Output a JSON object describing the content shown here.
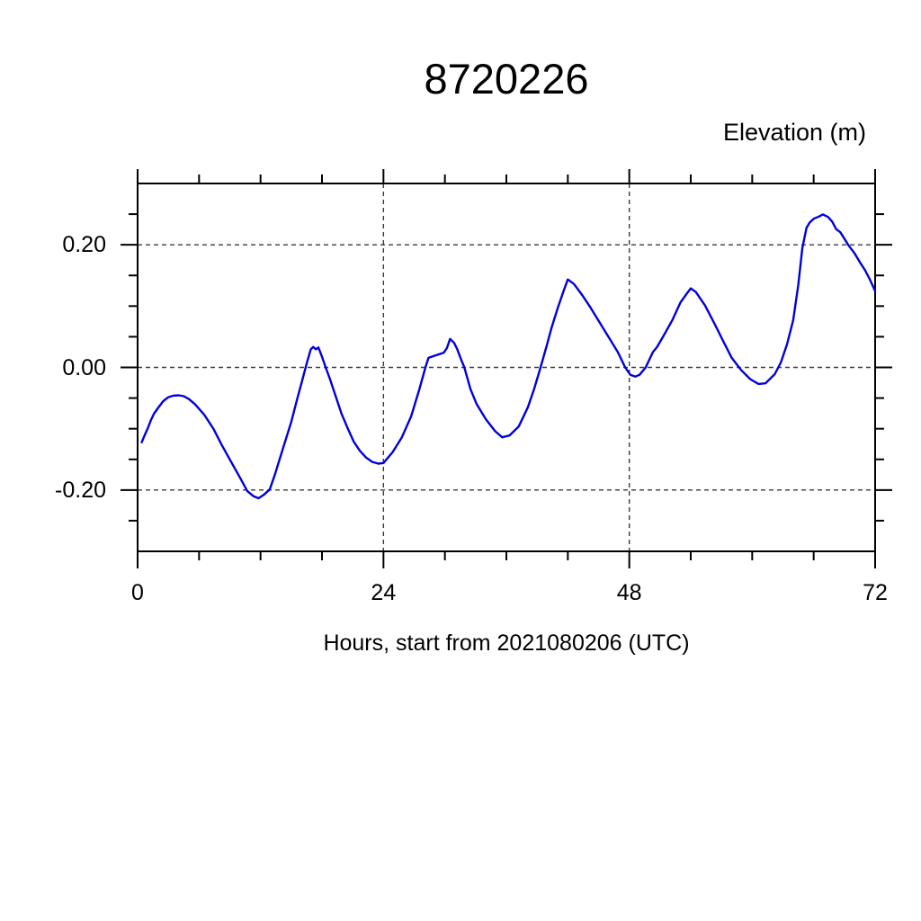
{
  "title": "8720226",
  "colors": {
    "line": "#0000dd",
    "frame": "#000000",
    "grid": "#3a3a3a",
    "background": "#ffffff",
    "text": "#000000"
  },
  "chart_data": {
    "type": "line",
    "title": "8720226",
    "xlabel": "Hours, start from 2021080206 (UTC)",
    "ylabel": "Elevation (m)",
    "ylabel_position": "top-right",
    "xlim": [
      0,
      72
    ],
    "ylim": [
      -0.3,
      0.3
    ],
    "x_ticks_major": [
      0,
      24,
      48,
      72
    ],
    "x_tick_labels": [
      "0",
      "24",
      "48",
      "72"
    ],
    "x_minor_interval": 6,
    "y_ticks_major": [
      0.2,
      0.0,
      -0.2
    ],
    "y_tick_labels": [
      "0.20",
      "0.00",
      "-0.20"
    ],
    "y_minor_interval": 0.05,
    "grid_x": [
      24,
      48
    ],
    "grid_y": [
      0.2,
      0.0,
      -0.2
    ],
    "grid_style": "dashed",
    "legend": "none",
    "series": [
      {
        "name": "elevation",
        "color": "#0000dd",
        "points": [
          [
            0.4,
            -0.122
          ],
          [
            0.7,
            -0.11
          ],
          [
            1.0,
            -0.099
          ],
          [
            1.3,
            -0.086
          ],
          [
            1.6,
            -0.0755
          ],
          [
            2.0,
            -0.066
          ],
          [
            2.5,
            -0.055
          ],
          [
            3.0,
            -0.0485
          ],
          [
            3.5,
            -0.046
          ],
          [
            4.0,
            -0.0455
          ],
          [
            4.5,
            -0.047
          ],
          [
            5.0,
            -0.0515
          ],
          [
            5.6,
            -0.06
          ],
          [
            6.5,
            -0.077
          ],
          [
            7.4,
            -0.1
          ],
          [
            8.2,
            -0.126
          ],
          [
            9.1,
            -0.153
          ],
          [
            10.0,
            -0.18
          ],
          [
            10.7,
            -0.2015
          ],
          [
            11.3,
            -0.21
          ],
          [
            11.8,
            -0.2135
          ],
          [
            12.3,
            -0.208
          ],
          [
            12.9,
            -0.199
          ],
          [
            13.4,
            -0.175
          ],
          [
            13.8,
            -0.153
          ],
          [
            14.4,
            -0.121
          ],
          [
            15.0,
            -0.089
          ],
          [
            15.6,
            -0.05
          ],
          [
            16.1,
            -0.019
          ],
          [
            16.5,
            0.006
          ],
          [
            16.9,
            0.0295
          ],
          [
            17.15,
            0.0335
          ],
          [
            17.4,
            0.0295
          ],
          [
            17.65,
            0.0325
          ],
          [
            18.0,
            0.0175
          ],
          [
            18.4,
            -0.002
          ],
          [
            18.8,
            -0.02
          ],
          [
            19.3,
            -0.045
          ],
          [
            19.9,
            -0.075
          ],
          [
            20.5,
            -0.099
          ],
          [
            21.1,
            -0.121
          ],
          [
            21.7,
            -0.136
          ],
          [
            22.3,
            -0.147
          ],
          [
            22.9,
            -0.154
          ],
          [
            23.5,
            -0.157
          ],
          [
            24.0,
            -0.156
          ],
          [
            24.9,
            -0.138
          ],
          [
            25.8,
            -0.114
          ],
          [
            26.7,
            -0.08
          ],
          [
            27.5,
            -0.036
          ],
          [
            28.1,
            0.0
          ],
          [
            28.4,
            0.0155
          ],
          [
            29.0,
            0.019
          ],
          [
            29.9,
            0.024
          ],
          [
            30.2,
            0.0315
          ],
          [
            30.5,
            0.0465
          ],
          [
            30.9,
            0.04
          ],
          [
            31.2,
            0.03
          ],
          [
            31.6,
            0.012
          ],
          [
            31.9,
            0.0
          ],
          [
            32.5,
            -0.0355
          ],
          [
            33.1,
            -0.06
          ],
          [
            34.0,
            -0.0845
          ],
          [
            34.9,
            -0.104
          ],
          [
            35.6,
            -0.114
          ],
          [
            36.3,
            -0.111
          ],
          [
            37.2,
            -0.0965
          ],
          [
            38.1,
            -0.065
          ],
          [
            38.7,
            -0.0355
          ],
          [
            39.3,
            -0.002
          ],
          [
            39.9,
            0.033
          ],
          [
            40.4,
            0.064
          ],
          [
            41.0,
            0.096
          ],
          [
            41.6,
            0.1255
          ],
          [
            42.0,
            0.1435
          ],
          [
            42.6,
            0.136
          ],
          [
            43.4,
            0.118
          ],
          [
            44.2,
            0.098
          ],
          [
            45.1,
            0.0735
          ],
          [
            46.0,
            0.049
          ],
          [
            46.9,
            0.0245
          ],
          [
            47.6,
            0.0
          ],
          [
            48.1,
            -0.012
          ],
          [
            48.6,
            -0.015
          ],
          [
            49.0,
            -0.012
          ],
          [
            49.6,
            0.0
          ],
          [
            50.3,
            0.025
          ],
          [
            50.7,
            0.033
          ],
          [
            51.3,
            0.05
          ],
          [
            52.2,
            0.077
          ],
          [
            53.0,
            0.106
          ],
          [
            53.6,
            0.12
          ],
          [
            54.0,
            0.129
          ],
          [
            54.5,
            0.123
          ],
          [
            55.4,
            0.101
          ],
          [
            56.3,
            0.072
          ],
          [
            57.2,
            0.042
          ],
          [
            58.0,
            0.0155
          ],
          [
            58.9,
            -0.004
          ],
          [
            59.8,
            -0.019
          ],
          [
            60.6,
            -0.027
          ],
          [
            61.3,
            -0.026
          ],
          [
            62.2,
            -0.011
          ],
          [
            62.8,
            0.008
          ],
          [
            63.4,
            0.038
          ],
          [
            64.0,
            0.077
          ],
          [
            64.5,
            0.135
          ],
          [
            64.9,
            0.195
          ],
          [
            65.3,
            0.2275
          ],
          [
            65.6,
            0.236
          ],
          [
            66.0,
            0.2425
          ],
          [
            66.5,
            0.246
          ],
          [
            66.9,
            0.2495
          ],
          [
            67.4,
            0.2455
          ],
          [
            67.8,
            0.238
          ],
          [
            68.2,
            0.2255
          ],
          [
            68.6,
            0.2205
          ],
          [
            69.0,
            0.21
          ],
          [
            69.4,
            0.199
          ],
          [
            70.0,
            0.186
          ],
          [
            70.5,
            0.172
          ],
          [
            71.0,
            0.159
          ],
          [
            71.5,
            0.143
          ],
          [
            72.0,
            0.1245
          ]
        ]
      }
    ]
  }
}
